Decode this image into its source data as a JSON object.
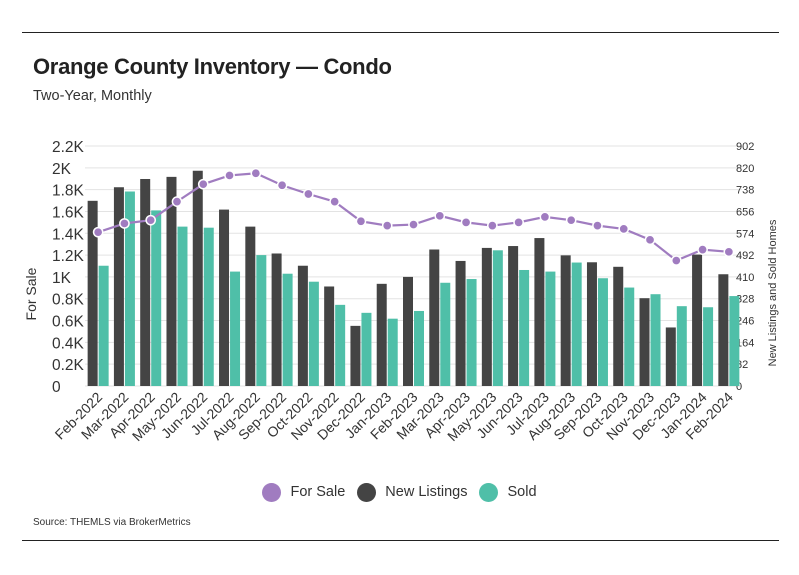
{
  "header": {
    "title": "Orange County Inventory — Condo",
    "subtitle": "Two-Year, Monthly"
  },
  "footer": {
    "source": "Source:  THEMLS via BrokerMetrics"
  },
  "legend": {
    "items": [
      {
        "label": "For Sale",
        "color": "#a07cc0"
      },
      {
        "label": "New Listings",
        "color": "#444444"
      },
      {
        "label": "Sold",
        "color": "#4fbfa8"
      }
    ]
  },
  "chart_data": {
    "type": "bar",
    "title": "Orange County Inventory — Condo",
    "subtitle": "Two-Year, Monthly",
    "ylabel": "For Sale",
    "y2label": "New Listings and Sold Homes",
    "ylim": [
      0,
      2200
    ],
    "y2lim": [
      0,
      902
    ],
    "yticks": [
      "0",
      "0.2K",
      "0.4K",
      "0.6K",
      "0.8K",
      "1K",
      "1.2K",
      "1.4K",
      "1.6K",
      "1.8K",
      "2K",
      "2.2K"
    ],
    "y2ticks": [
      "0",
      "82",
      "164",
      "246",
      "328",
      "410",
      "492",
      "574",
      "656",
      "738",
      "820",
      "902"
    ],
    "grid": true,
    "legend_position": "bottom",
    "categories": [
      "Feb-2022",
      "Mar-2022",
      "Apr-2022",
      "May-2022",
      "Jun-2022",
      "Jul-2022",
      "Aug-2022",
      "Sep-2022",
      "Oct-2022",
      "Nov-2022",
      "Dec-2022",
      "Jan-2023",
      "Feb-2023",
      "Mar-2023",
      "Apr-2023",
      "May-2023",
      "Jun-2023",
      "Jul-2023",
      "Aug-2023",
      "Sep-2023",
      "Oct-2023",
      "Nov-2023",
      "Dec-2023",
      "Jan-2024",
      "Feb-2024"
    ],
    "series": [
      {
        "name": "For Sale",
        "type": "line",
        "axis": "left",
        "color": "#a07cc0",
        "values": [
          1410,
          1490,
          1520,
          1690,
          1850,
          1930,
          1950,
          1840,
          1760,
          1690,
          1510,
          1470,
          1480,
          1560,
          1500,
          1470,
          1500,
          1550,
          1520,
          1470,
          1440,
          1340,
          1150,
          1250,
          1230
        ]
      },
      {
        "name": "New Listings",
        "type": "bar",
        "axis": "right",
        "color": "#444444",
        "values": [
          696,
          747,
          778,
          786,
          809,
          663,
          599,
          498,
          452,
          374,
          226,
          384,
          410,
          513,
          470,
          519,
          526,
          556,
          491,
          465,
          448,
          330,
          220,
          494,
          420
        ]
      },
      {
        "name": "Sold",
        "type": "bar",
        "axis": "right",
        "color": "#4fbfa8",
        "values": [
          452,
          731,
          660,
          599,
          595,
          430,
          492,
          422,
          392,
          305,
          275,
          253,
          282,
          388,
          402,
          510,
          436,
          430,
          464,
          405,
          370,
          345,
          300,
          296,
          338
        ]
      }
    ]
  }
}
